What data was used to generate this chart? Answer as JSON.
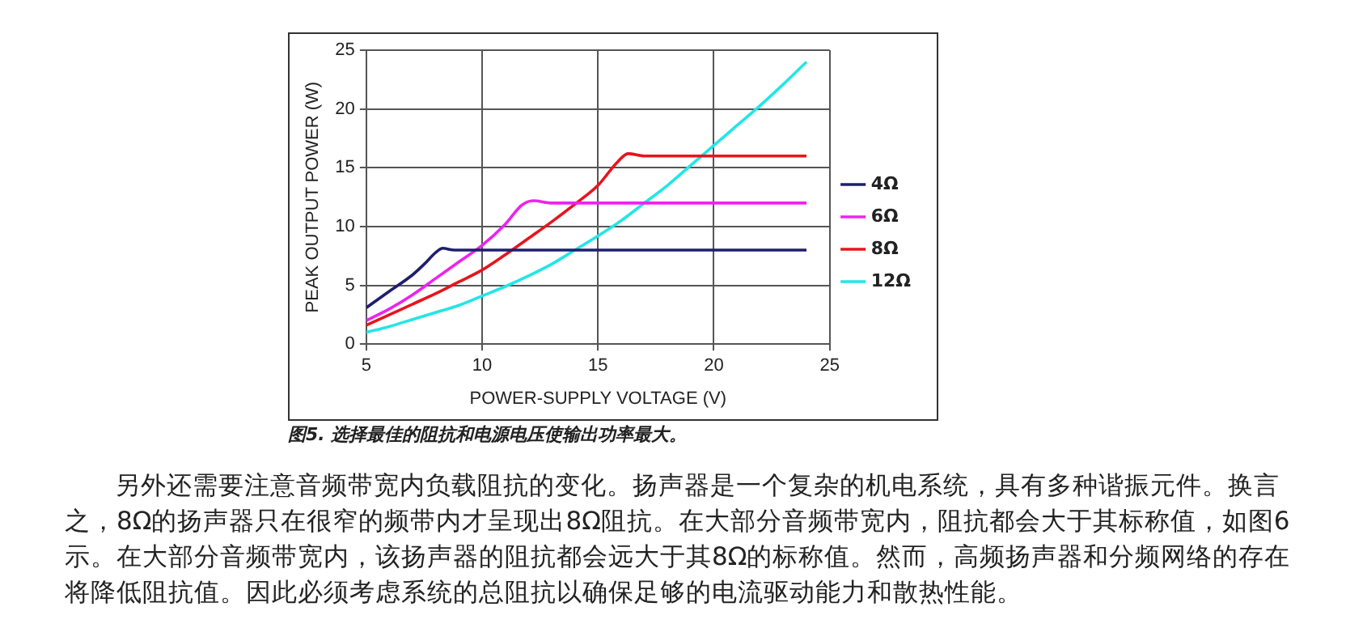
{
  "chart_data": {
    "type": "line",
    "xlabel": "POWER-SUPPLY VOLTAGE (V)",
    "ylabel": "PEAK OUTPUT POWER (W)",
    "xlim": [
      5,
      25
    ],
    "xticks": [
      5,
      10,
      15,
      20,
      25
    ],
    "ylim": [
      0,
      25
    ],
    "yticks": [
      0,
      5,
      10,
      15,
      20,
      25
    ],
    "grid": true,
    "legend": "right",
    "marker": "none",
    "series": [
      {
        "name": "4Ω",
        "color": "#1f1f6e",
        "x": [
          5,
          6,
          7,
          7.5,
          8,
          8.3,
          8.8,
          24
        ],
        "values": [
          3.1,
          4.5,
          5.9,
          6.8,
          7.8,
          8.15,
          8.0,
          8
        ]
      },
      {
        "name": "6Ω",
        "color": "#ee22ee",
        "x": [
          5,
          6,
          7,
          8,
          9,
          10,
          11,
          11.7,
          12.2,
          13,
          24
        ],
        "values": [
          2.0,
          3.0,
          4.2,
          5.6,
          7.0,
          8.4,
          10.2,
          11.8,
          12.2,
          12.0,
          12
        ]
      },
      {
        "name": "8Ω",
        "color": "#e8141c",
        "x": [
          5,
          6,
          7,
          8,
          9,
          10,
          11,
          12,
          13,
          14,
          15,
          15.8,
          16.3,
          17,
          24
        ],
        "values": [
          1.6,
          2.5,
          3.4,
          4.3,
          5.3,
          6.3,
          7.6,
          9.0,
          10.4,
          11.9,
          13.5,
          15.4,
          16.2,
          16.0,
          16
        ]
      },
      {
        "name": "12Ω",
        "color": "#22e6e6",
        "x": [
          5,
          6,
          7,
          8,
          9,
          10,
          11,
          12,
          13,
          14,
          15,
          16,
          17,
          18,
          19,
          20,
          21,
          22,
          23,
          24
        ],
        "values": [
          1.0,
          1.5,
          2.1,
          2.7,
          3.3,
          4.1,
          4.9,
          5.8,
          6.8,
          8.0,
          9.2,
          10.5,
          12.0,
          13.5,
          15.2,
          16.9,
          18.6,
          20.3,
          22.1,
          24.0
        ]
      }
    ],
    "annotations": [
      "图5. 选择最佳的阻抗和电源电压使输出功率最大。",
      "另外还需要注意音频带宽内负载阻抗的变化。扬声器是一个复杂的机电系统，具有多种谐振元件。换言之，8Ω的扬声器只在很窄的频带内才呈现出8Ω阻抗。在大部分音频带宽内，阻抗都会大于其标称值，如图6示。在大部分音频带宽内，该扬声器的阻抗都会远大于其8Ω的标称值。然而，高频扬声器和分频网络的存在将降低阻抗值。因此必须考虑系统的总阻抗以确保足够的电流驱动能力和散热性能。"
    ]
  }
}
